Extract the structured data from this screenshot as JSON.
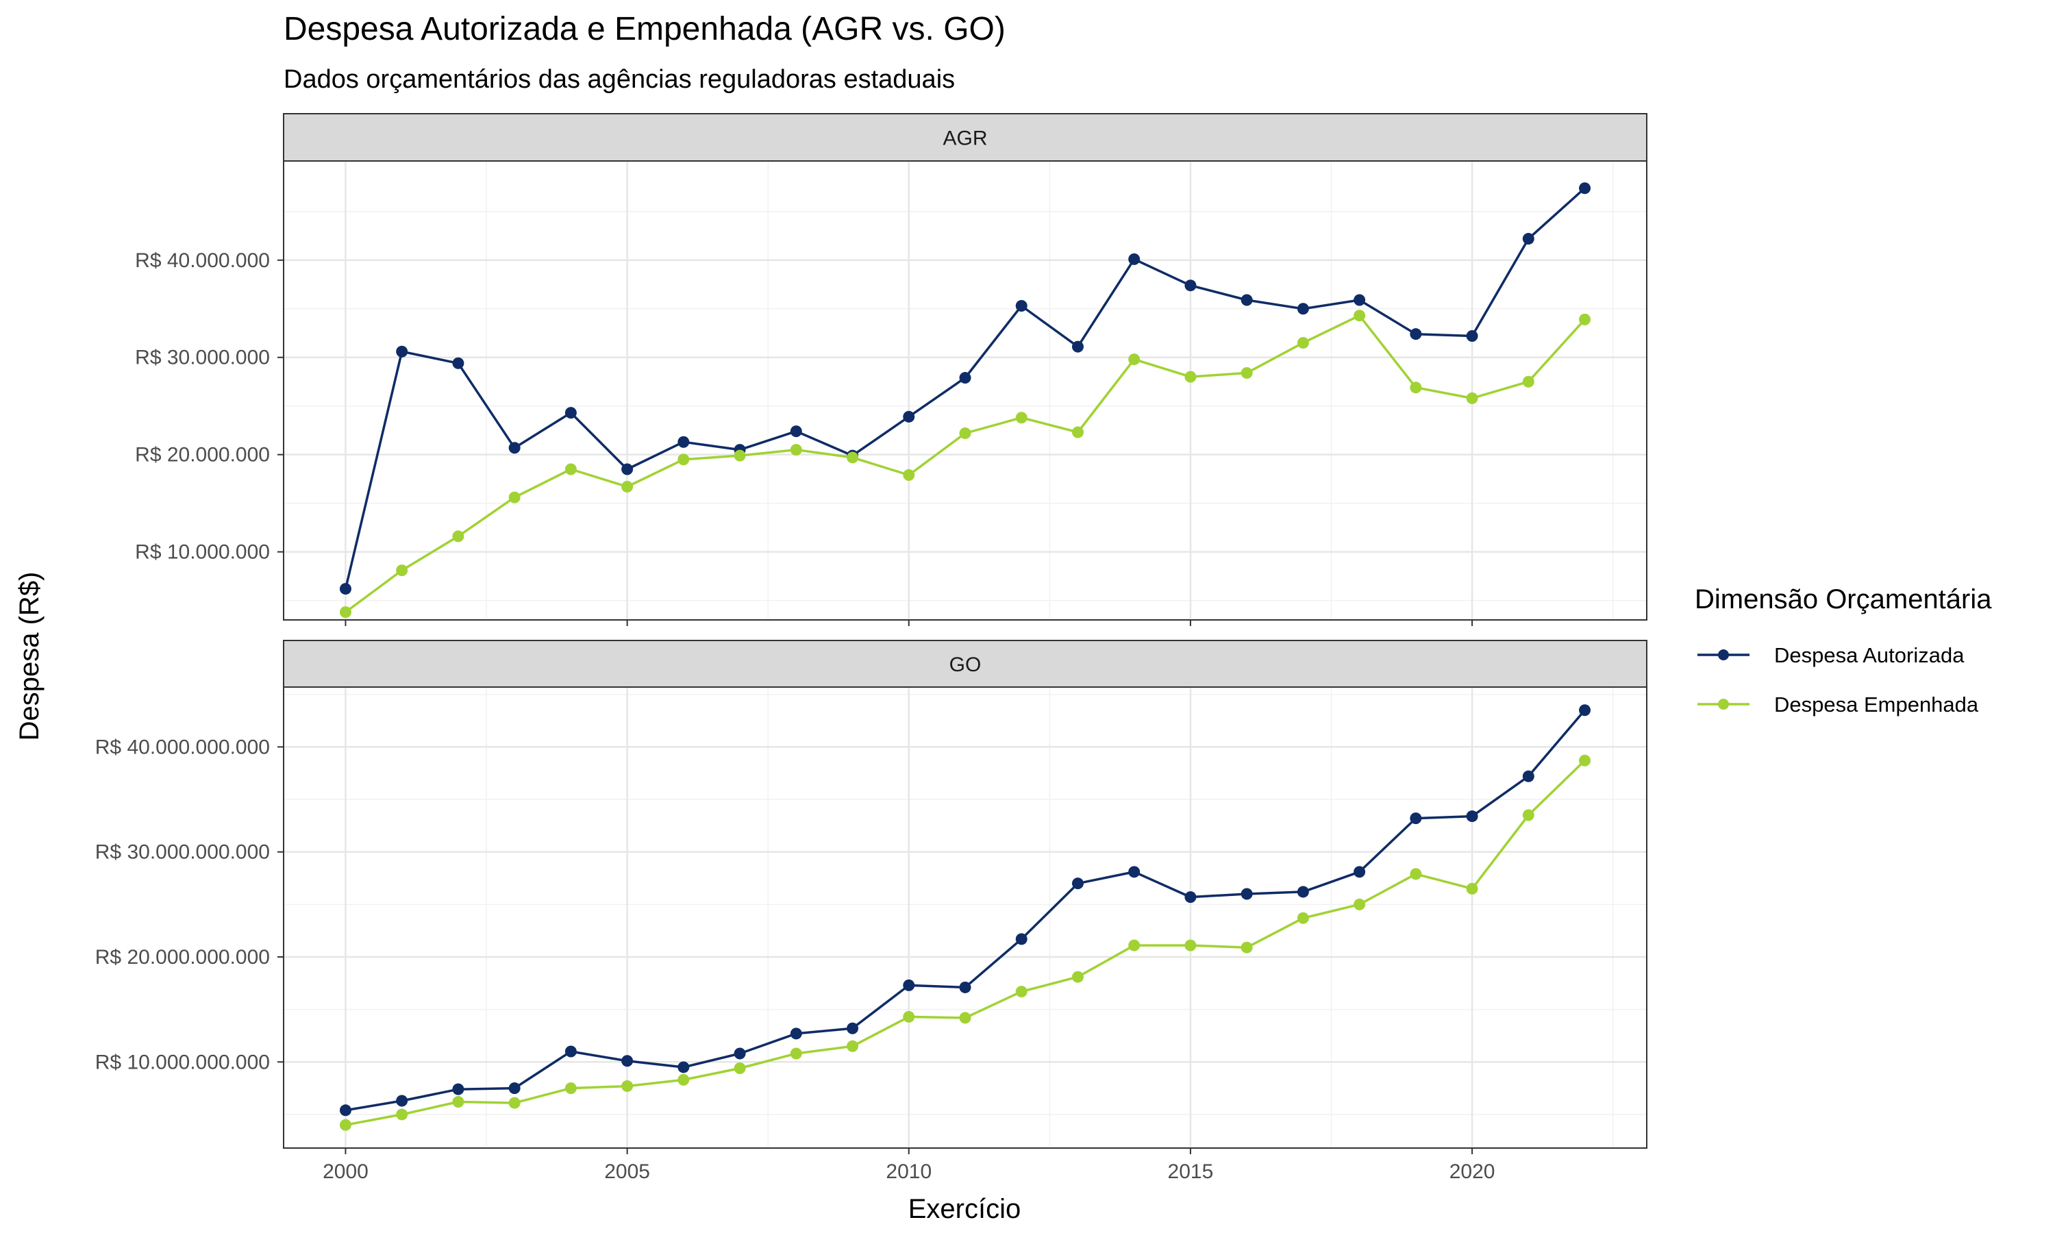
{
  "title": "Despesa Autorizada e Empenhada (AGR vs. GO)",
  "subtitle": "Dados orçamentários das agências reguladoras estaduais",
  "xlabel": "Exercício",
  "ylabel": "Despesa (R$)",
  "colors": {
    "autorizada": "#0f2c66",
    "empenhada": "#a1d234"
  },
  "legend": {
    "title": "Dimensão Orçamentária",
    "items": [
      {
        "label": "Despesa Autorizada",
        "color": "#0f2c66"
      },
      {
        "label": "Despesa Empenhada",
        "color": "#a1d234"
      }
    ]
  },
  "chart_data": [
    {
      "type": "line",
      "panel": "AGR",
      "x": [
        2000,
        2001,
        2002,
        2003,
        2004,
        2005,
        2006,
        2007,
        2008,
        2009,
        2010,
        2011,
        2012,
        2013,
        2014,
        2015,
        2016,
        2017,
        2018,
        2019,
        2020,
        2021,
        2022
      ],
      "x_ticks": [
        2000,
        2005,
        2010,
        2015,
        2020
      ],
      "x_tick_labels": [
        "2000",
        "2005",
        "2010",
        "2015",
        "2020"
      ],
      "xlim": [
        1998.9,
        2023.1
      ],
      "ylim": [
        3000000,
        50200000
      ],
      "y_ticks": [
        10000000,
        20000000,
        30000000,
        40000000
      ],
      "y_tick_labels": [
        "R$ 10.000.000",
        "R$ 20.000.000",
        "R$ 30.000.000",
        "R$ 40.000.000"
      ],
      "grid": true,
      "legend": "right",
      "series": [
        {
          "name": "Despesa Autorizada",
          "values": [
            6200000,
            30600000,
            29400000,
            20700000,
            24300000,
            18500000,
            21300000,
            20500000,
            22400000,
            19900000,
            23900000,
            27900000,
            35300000,
            31100000,
            40100000,
            37400000,
            35900000,
            35000000,
            35900000,
            32400000,
            32200000,
            42200000,
            47400000
          ]
        },
        {
          "name": "Despesa Empenhada",
          "values": [
            3800000,
            8100000,
            11600000,
            15600000,
            18500000,
            16700000,
            19500000,
            19900000,
            20500000,
            19700000,
            17900000,
            22200000,
            23800000,
            22300000,
            29800000,
            28000000,
            28400000,
            31500000,
            34300000,
            26900000,
            25800000,
            27500000,
            33900000
          ]
        }
      ]
    },
    {
      "type": "line",
      "panel": "GO",
      "x": [
        2000,
        2001,
        2002,
        2003,
        2004,
        2005,
        2006,
        2007,
        2008,
        2009,
        2010,
        2011,
        2012,
        2013,
        2014,
        2015,
        2016,
        2017,
        2018,
        2019,
        2020,
        2021,
        2022
      ],
      "x_ticks": [
        2000,
        2005,
        2010,
        2015,
        2020
      ],
      "x_tick_labels": [
        "2000",
        "2005",
        "2010",
        "2015",
        "2020"
      ],
      "xlim": [
        1998.9,
        2023.1
      ],
      "ylim": [
        1800000000,
        45700000000
      ],
      "y_ticks": [
        10000000000,
        20000000000,
        30000000000,
        40000000000
      ],
      "y_tick_labels": [
        "R$ 10.000.000.000",
        "R$ 20.000.000.000",
        "R$ 30.000.000.000",
        "R$ 40.000.000.000"
      ],
      "grid": true,
      "legend": "right",
      "series": [
        {
          "name": "Despesa Autorizada",
          "values": [
            5400000000,
            6300000000,
            7400000000,
            7500000000,
            11000000000,
            10100000000,
            9500000000,
            10800000000,
            12700000000,
            13200000000,
            17300000000,
            17100000000,
            21700000000,
            27000000000,
            28100000000,
            25700000000,
            26000000000,
            26200000000,
            28100000000,
            33200000000,
            33400000000,
            37200000000,
            43500000000
          ]
        },
        {
          "name": "Despesa Empenhada",
          "values": [
            4000000000,
            5000000000,
            6200000000,
            6100000000,
            7500000000,
            7700000000,
            8300000000,
            9400000000,
            10800000000,
            11500000000,
            14300000000,
            14200000000,
            16700000000,
            18100000000,
            21100000000,
            21100000000,
            20900000000,
            23700000000,
            25000000000,
            27900000000,
            26500000000,
            33500000000,
            38700000000
          ]
        }
      ]
    }
  ]
}
